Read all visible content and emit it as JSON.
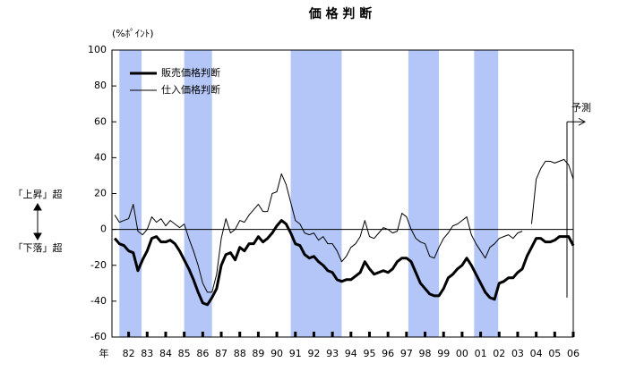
{
  "chart_data": {
    "type": "line",
    "title": "価 格 判 断",
    "annotations": {
      "unit": "(%ﾎﾟｲﾝﾄ)",
      "up": "「上昇」超",
      "down": "「下落」超",
      "forecast": "予測",
      "year": "年"
    },
    "legend": "upper left",
    "xlim": [
      1981.1,
      2006
    ],
    "ylim": [
      -60,
      100
    ],
    "yticks": [
      -60,
      -40,
      -20,
      0,
      20,
      40,
      60,
      80,
      100
    ],
    "xticks": [
      {
        "value": 1982,
        "label": "82"
      },
      {
        "value": 1983,
        "label": "83"
      },
      {
        "value": 1984,
        "label": "84"
      },
      {
        "value": 1985,
        "label": "85"
      },
      {
        "value": 1986,
        "label": "86"
      },
      {
        "value": 1987,
        "label": "87"
      },
      {
        "value": 1988,
        "label": "88"
      },
      {
        "value": 1989,
        "label": "89"
      },
      {
        "value": 1990,
        "label": "90"
      },
      {
        "value": 1991,
        "label": "91"
      },
      {
        "value": 1992,
        "label": "92"
      },
      {
        "value": 1993,
        "label": "93"
      },
      {
        "value": 1994,
        "label": "94"
      },
      {
        "value": 1995,
        "label": "95"
      },
      {
        "value": 1996,
        "label": "96"
      },
      {
        "value": 1997,
        "label": "97"
      },
      {
        "value": 1998,
        "label": "98"
      },
      {
        "value": 1999,
        "label": "99"
      },
      {
        "value": 2000,
        "label": "00"
      },
      {
        "value": 2001,
        "label": "01"
      },
      {
        "value": 2002,
        "label": "02"
      },
      {
        "value": 2003,
        "label": "03"
      },
      {
        "value": 2004,
        "label": "04"
      },
      {
        "value": 2005,
        "label": "05"
      },
      {
        "value": 2006,
        "label": "06"
      }
    ],
    "shaded_ranges": [
      [
        1981.5,
        1982.7
      ],
      [
        1985,
        1986.5
      ],
      [
        1990.75,
        1993.5
      ],
      [
        1997.1,
        1998.75
      ],
      [
        2000.65,
        2001.95
      ]
    ],
    "shade_color": "#b3c6f7",
    "x": [
      1981.25,
      1981.5,
      1981.75,
      1982,
      1982.25,
      1982.5,
      1982.75,
      1983,
      1983.25,
      1983.5,
      1983.75,
      1984,
      1984.25,
      1984.5,
      1984.75,
      1985,
      1985.25,
      1985.5,
      1985.75,
      1986,
      1986.25,
      1986.5,
      1986.75,
      1987,
      1987.25,
      1987.5,
      1987.75,
      1988,
      1988.25,
      1988.5,
      1988.75,
      1989,
      1989.25,
      1989.5,
      1989.75,
      1990,
      1990.25,
      1990.5,
      1990.75,
      1991,
      1991.25,
      1991.5,
      1991.75,
      1992,
      1992.25,
      1992.5,
      1992.75,
      1993,
      1993.25,
      1993.5,
      1993.75,
      1994,
      1994.25,
      1994.5,
      1994.75,
      1995,
      1995.25,
      1995.5,
      1995.75,
      1996,
      1996.25,
      1996.5,
      1996.75,
      1997,
      1997.25,
      1997.5,
      1997.75,
      1998,
      1998.25,
      1998.5,
      1998.75,
      1999,
      1999.25,
      1999.5,
      1999.75,
      2000,
      2000.25,
      2000.5,
      2000.75,
      2001,
      2001.25,
      2001.5,
      2001.75,
      2002,
      2002.25,
      2002.5,
      2002.75,
      2003,
      2003.25,
      2003.5,
      2003.75,
      2004,
      2004.25,
      2004.5,
      2004.75,
      2005,
      2005.25,
      2005.5,
      2005.75,
      2006
    ],
    "series": [
      {
        "name": "販売価格判断",
        "color": "#000000",
        "width": 3,
        "values": [
          -5,
          -8,
          -9,
          -12,
          -13,
          -23,
          -17,
          -12,
          -5,
          -4,
          -7,
          -7,
          -6,
          -8,
          -12,
          -17,
          -22,
          -28,
          -35,
          -41,
          -42,
          -38,
          -33,
          -20,
          -14,
          -13,
          -17,
          -10,
          -12,
          -8,
          -8,
          -4,
          -7,
          -5,
          -2,
          2,
          5,
          3,
          -2,
          -8,
          -9,
          -14,
          -16,
          -15,
          -18,
          -20,
          -23,
          -24,
          -28,
          -29,
          -28,
          -28,
          -26,
          -24,
          -18,
          -22,
          -25,
          -24,
          -23,
          -24,
          -22,
          -18,
          -16,
          -16,
          -18,
          -24,
          -30,
          -33,
          -36,
          -37,
          -37,
          -33,
          -27,
          -25,
          -22,
          -20,
          -16,
          -20,
          -25,
          -30,
          -35,
          -38,
          -39,
          -30,
          -29,
          -27,
          -27,
          -24,
          -22,
          -15,
          -10,
          -5,
          -5,
          -7,
          -7,
          -6,
          -4,
          -4,
          -4,
          -9
        ]
      },
      {
        "name": "仕入価格判断",
        "color": "#000000",
        "width": 1,
        "values": [
          8,
          4,
          5,
          6,
          14,
          -1,
          -3,
          0,
          7,
          4,
          6,
          2,
          5,
          3,
          1,
          3,
          -5,
          -12,
          -20,
          -30,
          -35,
          -35,
          -25,
          -5,
          6,
          -2,
          0,
          5,
          4,
          8,
          11,
          14,
          10,
          10,
          20,
          21,
          31,
          25,
          15,
          5,
          3,
          -2,
          -3,
          -2,
          -6,
          -4,
          -8,
          -8,
          -12,
          -18,
          -15,
          -10,
          -8,
          -4,
          5,
          -4,
          -5,
          -2,
          1,
          0,
          -2,
          -1,
          9,
          7,
          0,
          -5,
          -7,
          -8,
          -15,
          -16,
          -10,
          -5,
          -2,
          2,
          3,
          5,
          7,
          -3,
          -8,
          -12,
          -16,
          -10,
          -8,
          -5,
          -4,
          -3,
          -5,
          -2,
          -1,
          null,
          3,
          28,
          34,
          38,
          38,
          37,
          38,
          39,
          36,
          28
        ]
      }
    ]
  }
}
